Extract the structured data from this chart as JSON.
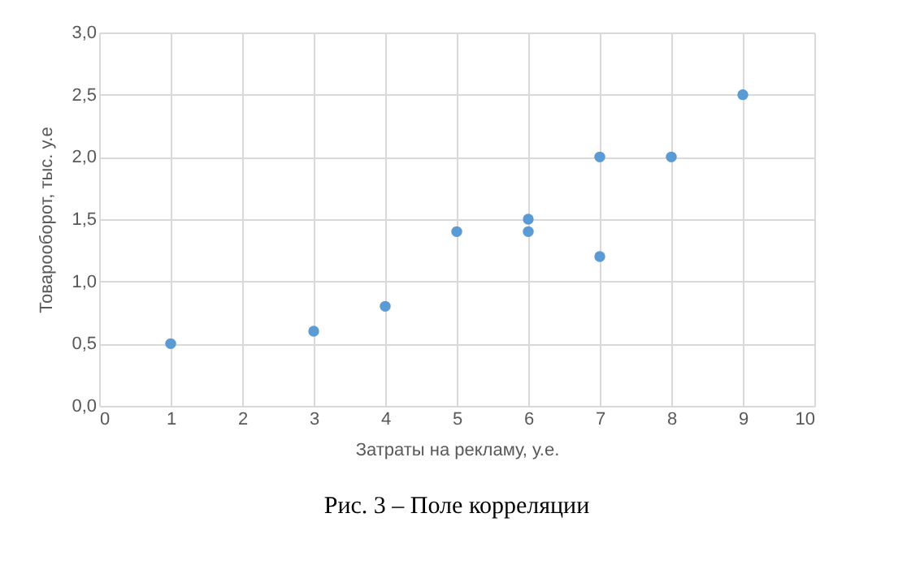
{
  "chart_data": {
    "type": "scatter",
    "xlabel": "Затраты на рекламу, у.е.",
    "ylabel": "Товарооборот, тыс. у.е",
    "annotations": [
      "Рис. 3 – Поле корреляции"
    ],
    "x": [
      1,
      3,
      4,
      5,
      6,
      6,
      7,
      7,
      8,
      9
    ],
    "series": [
      {
        "color": "#5b9bd5",
        "values": [
          0.5,
          0.6,
          0.8,
          1.4,
          1.5,
          1.4,
          2.0,
          1.2,
          2.0,
          2.5
        ]
      }
    ],
    "xlim": [
      0,
      10
    ],
    "xticks": [
      0,
      1,
      2,
      3,
      4,
      5,
      6,
      7,
      8,
      9,
      10
    ],
    "ylim": [
      0,
      3
    ],
    "yticks": [
      {
        "value": 0,
        "label": "0,0"
      },
      {
        "value": 0.5,
        "label": "0,5"
      },
      {
        "value": 1,
        "label": "1,0"
      },
      {
        "value": 1.5,
        "label": "1,5"
      },
      {
        "value": 2,
        "label": "2,0"
      },
      {
        "value": 2.5,
        "label": "2,5"
      },
      {
        "value": 3,
        "label": "3,0"
      }
    ],
    "grid": true,
    "marker": "circle"
  }
}
